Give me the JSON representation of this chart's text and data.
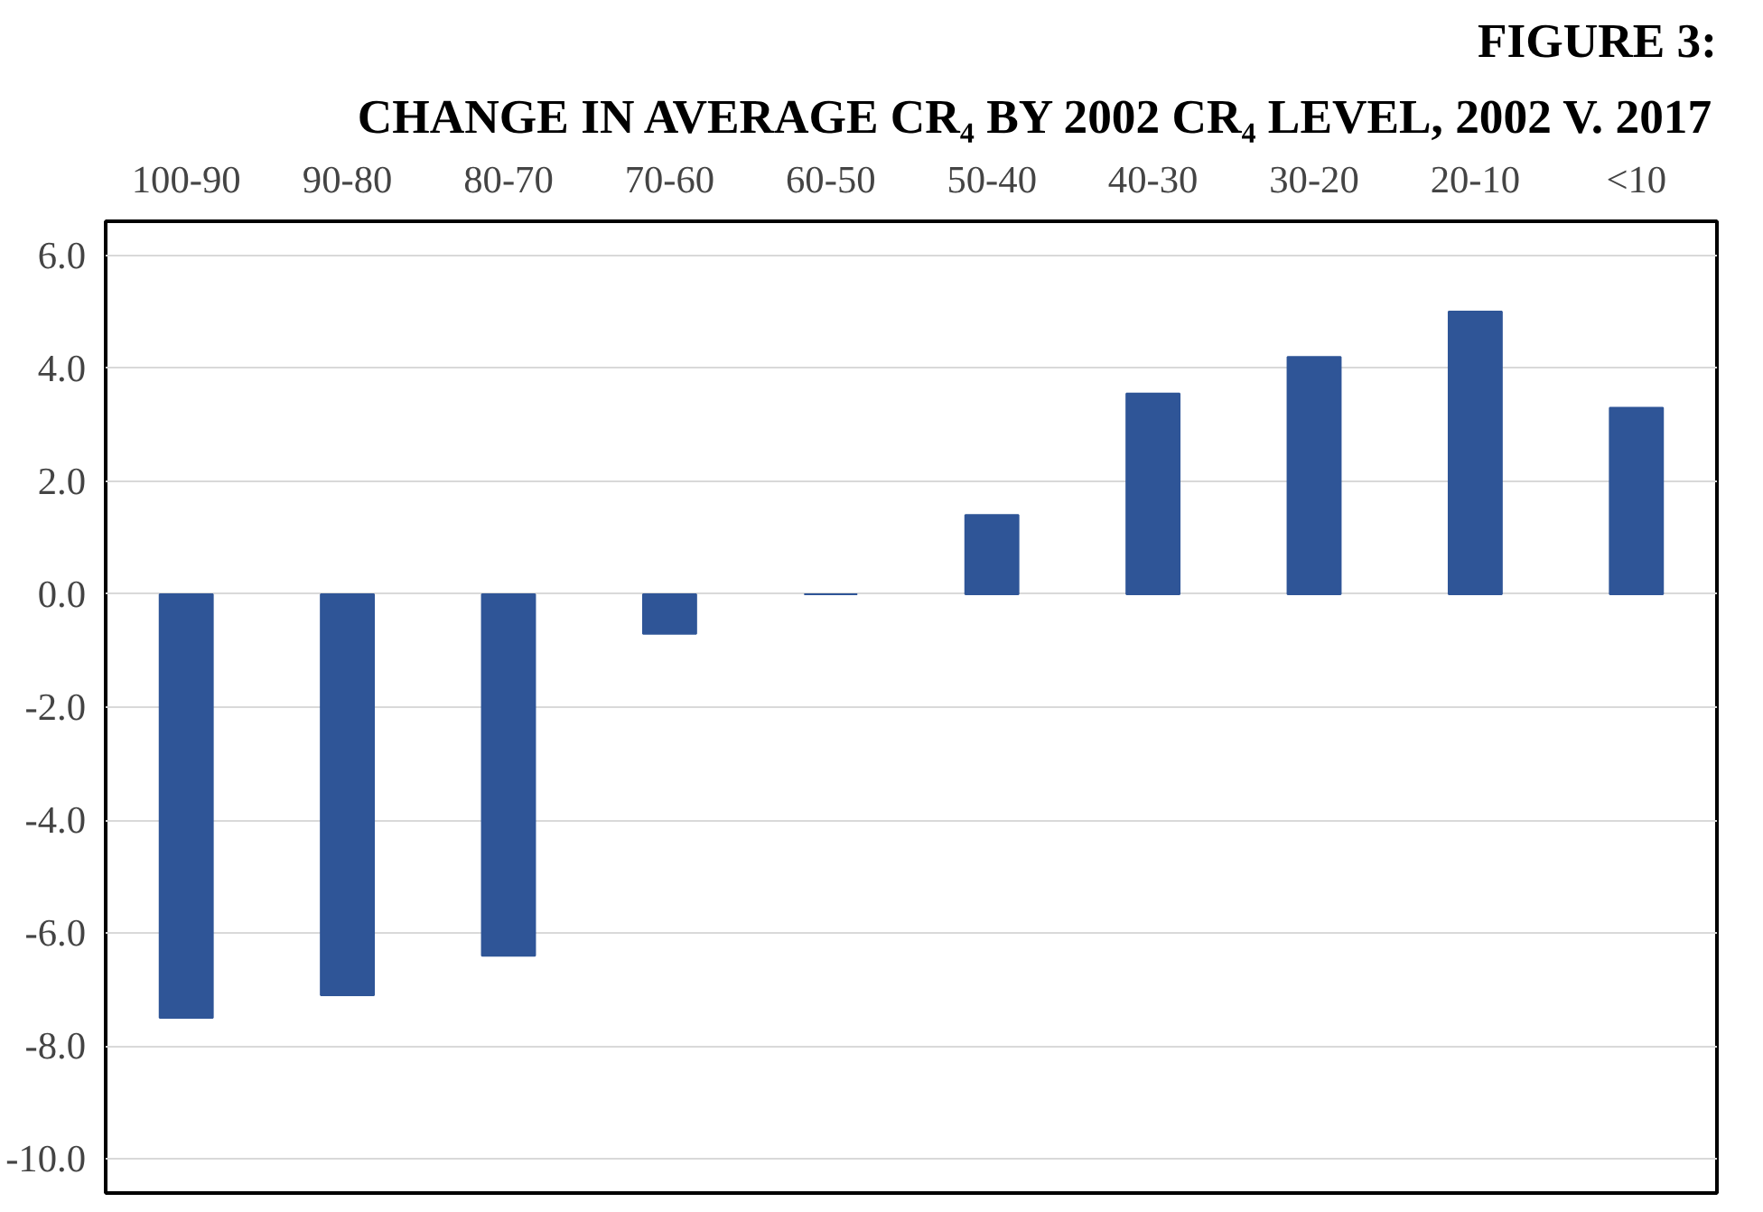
{
  "chart_data": {
    "type": "bar",
    "title": "FIGURE 3:",
    "subtitle": "CHANGE IN AVERAGE CR₄ BY 2002 CR₄ LEVEL, 2002 V. 2017",
    "categories": [
      "100-90",
      "90-80",
      "80-70",
      "70-60",
      "60-50",
      "50-40",
      "40-30",
      "30-20",
      "20-10",
      "<10"
    ],
    "values": [
      -7.5,
      -7.1,
      -6.4,
      -0.7,
      0,
      1.4,
      3.55,
      4.2,
      5.0,
      3.3
    ],
    "color": "#2f5597",
    "ylim": [
      -10.6,
      6.6
    ],
    "yticks": [
      {
        "value": 6,
        "label": "6.0"
      },
      {
        "value": 4,
        "label": "4.0"
      },
      {
        "value": 2,
        "label": "2.0"
      },
      {
        "value": 0,
        "label": "0.0"
      },
      {
        "value": -2,
        "label": "-2.0"
      },
      {
        "value": -4,
        "label": "-4.0"
      },
      {
        "value": -6,
        "label": "-6.0"
      },
      {
        "value": -8,
        "label": "-8.0"
      },
      {
        "value": -10,
        "label": "-10.0"
      }
    ],
    "grid": "y"
  }
}
